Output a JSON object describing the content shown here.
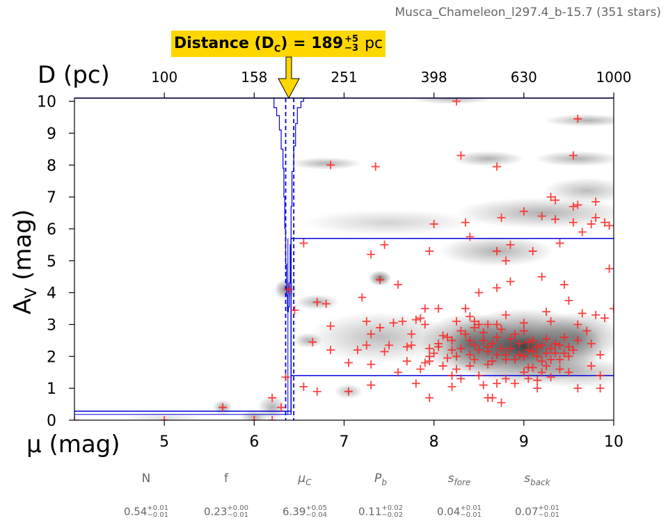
{
  "figure": {
    "source_title": "Musca_Chameleon_l297.4_b-15.7 (351 stars)",
    "distance_label_prefix": "Distance (D",
    "distance_label_sub": "C",
    "distance_label_mid": ") = 189",
    "distance_plus": "+5",
    "distance_minus": "−3",
    "distance_unit": "pc"
  },
  "chart_data": {
    "type": "scatter",
    "xlabel": "μ (mag)",
    "ylabel": "A",
    "ylabel_sub": "V",
    "ylabel_suffix": " (mag)",
    "top_xlabel": "D (pc)",
    "xlim": [
      4,
      10
    ],
    "ylim": [
      0,
      10.1
    ],
    "x_ticks": [
      "5",
      "6",
      "7",
      "8",
      "9",
      "10"
    ],
    "x_tick_values": [
      5,
      6,
      7,
      8,
      9,
      10
    ],
    "y_ticks": [
      "0",
      "1",
      "2",
      "3",
      "4",
      "5",
      "6",
      "7",
      "8",
      "9",
      "10"
    ],
    "top_ticks": [
      "100",
      "158",
      "251",
      "398",
      "630",
      "1000"
    ],
    "top_tick_values": [
      5,
      6,
      7,
      8,
      9,
      10
    ],
    "mu_cloud": 6.39,
    "mu_lo": 6.35,
    "mu_hi": 6.44,
    "foreground_av": 0.23,
    "foreground_band": [
      0.18,
      0.28
    ],
    "background_band": [
      1.4,
      5.7
    ],
    "colors": {
      "stars": "#FF2020",
      "model": "#0000DD",
      "highlight": "#FFD700",
      "density": "#202020"
    },
    "density_blobs": [
      {
        "x": 9.0,
        "y": 2.3,
        "sx": 0.55,
        "sy": 0.75,
        "a": 0.85
      },
      {
        "x": 8.4,
        "y": 2.4,
        "sx": 0.35,
        "sy": 0.6,
        "a": 0.55
      },
      {
        "x": 9.6,
        "y": 2.6,
        "sx": 0.3,
        "sy": 0.5,
        "a": 0.45
      },
      {
        "x": 7.4,
        "y": 2.6,
        "sx": 0.5,
        "sy": 0.5,
        "a": 0.3
      },
      {
        "x": 8.6,
        "y": 8.2,
        "sx": 0.25,
        "sy": 0.15,
        "a": 0.35
      },
      {
        "x": 9.6,
        "y": 8.2,
        "sx": 0.3,
        "sy": 0.15,
        "a": 0.35
      },
      {
        "x": 9.7,
        "y": 9.4,
        "sx": 0.3,
        "sy": 0.12,
        "a": 0.35
      },
      {
        "x": 8.2,
        "y": 10.1,
        "sx": 0.3,
        "sy": 0.12,
        "a": 0.35
      },
      {
        "x": 7.5,
        "y": 6.2,
        "sx": 0.6,
        "sy": 0.25,
        "a": 0.2
      },
      {
        "x": 9.2,
        "y": 6.5,
        "sx": 0.6,
        "sy": 0.3,
        "a": 0.35
      },
      {
        "x": 9.7,
        "y": 7.2,
        "sx": 0.3,
        "sy": 0.25,
        "a": 0.3
      },
      {
        "x": 8.7,
        "y": 5.3,
        "sx": 0.4,
        "sy": 0.3,
        "a": 0.35
      },
      {
        "x": 6.8,
        "y": 8.05,
        "sx": 0.25,
        "sy": 0.12,
        "a": 0.35
      },
      {
        "x": 7.4,
        "y": 4.45,
        "sx": 0.08,
        "sy": 0.15,
        "a": 0.6
      },
      {
        "x": 6.35,
        "y": 4.1,
        "sx": 0.08,
        "sy": 0.2,
        "a": 0.55
      },
      {
        "x": 6.7,
        "y": 3.7,
        "sx": 0.15,
        "sy": 0.15,
        "a": 0.35
      },
      {
        "x": 5.65,
        "y": 0.4,
        "sx": 0.07,
        "sy": 0.15,
        "a": 0.4
      },
      {
        "x": 6.0,
        "y": 0.1,
        "sx": 0.1,
        "sy": 0.15,
        "a": 0.35
      },
      {
        "x": 6.2,
        "y": 0.4,
        "sx": 0.1,
        "sy": 0.25,
        "a": 0.35
      },
      {
        "x": 5.0,
        "y": 0.05,
        "sx": 0.3,
        "sy": 0.12,
        "a": 0.15
      },
      {
        "x": 6.6,
        "y": 2.5,
        "sx": 0.1,
        "sy": 0.15,
        "a": 0.35
      },
      {
        "x": 7.05,
        "y": 0.9,
        "sx": 0.1,
        "sy": 0.15,
        "a": 0.3
      },
      {
        "x": 9.6,
        "y": 1.5,
        "sx": 0.4,
        "sy": 0.3,
        "a": 0.3
      }
    ],
    "stars": [
      [
        4.0,
        0.0
      ],
      [
        5.0,
        0.0
      ],
      [
        6.0,
        0.0
      ],
      [
        6.2,
        0.0
      ],
      [
        5.65,
        0.4
      ],
      [
        6.2,
        0.7
      ],
      [
        6.3,
        0.4
      ],
      [
        6.35,
        1.35
      ],
      [
        6.38,
        4.1
      ],
      [
        6.45,
        3.45
      ],
      [
        6.55,
        5.55
      ],
      [
        6.55,
        1.05
      ],
      [
        6.65,
        2.45
      ],
      [
        6.7,
        0.9
      ],
      [
        6.7,
        3.7
      ],
      [
        6.8,
        3.65
      ],
      [
        6.85,
        2.95
      ],
      [
        6.85,
        2.2
      ],
      [
        6.85,
        8.0
      ],
      [
        7.05,
        0.9
      ],
      [
        7.05,
        1.8
      ],
      [
        7.15,
        2.2
      ],
      [
        7.2,
        3.85
      ],
      [
        7.25,
        2.35
      ],
      [
        7.25,
        3.1
      ],
      [
        7.3,
        2.7
      ],
      [
        7.3,
        1.75
      ],
      [
        7.3,
        1.1
      ],
      [
        7.3,
        5.2
      ],
      [
        7.35,
        7.95
      ],
      [
        7.4,
        4.4
      ],
      [
        7.4,
        2.9
      ],
      [
        7.45,
        2.15
      ],
      [
        7.45,
        5.5
      ],
      [
        7.5,
        2.35
      ],
      [
        7.55,
        3.05
      ],
      [
        7.6,
        4.25
      ],
      [
        7.6,
        1.5
      ],
      [
        7.65,
        3.1
      ],
      [
        7.7,
        2.3
      ],
      [
        7.7,
        1.85
      ],
      [
        7.75,
        2.7
      ],
      [
        7.8,
        1.15
      ],
      [
        7.8,
        3.15
      ],
      [
        7.85,
        3.2
      ],
      [
        7.85,
        1.6
      ],
      [
        7.9,
        1.8
      ],
      [
        7.9,
        3.5
      ],
      [
        7.95,
        2.25
      ],
      [
        7.95,
        0.7
      ],
      [
        7.95,
        5.3
      ],
      [
        7.95,
        2.0
      ],
      [
        7.95,
        1.85
      ],
      [
        7.9,
        3.0
      ],
      [
        8.0,
        2.1
      ],
      [
        8.0,
        6.15
      ],
      [
        8.05,
        3.5
      ],
      [
        8.05,
        2.3
      ],
      [
        8.1,
        1.7
      ],
      [
        8.15,
        2.6
      ],
      [
        8.2,
        1.4
      ],
      [
        8.2,
        1.05
      ],
      [
        8.2,
        2.2
      ],
      [
        8.25,
        3.1
      ],
      [
        8.25,
        2.0
      ],
      [
        8.25,
        10.0
      ],
      [
        8.3,
        1.3
      ],
      [
        8.3,
        2.8
      ],
      [
        8.3,
        8.3
      ],
      [
        8.35,
        6.2
      ],
      [
        8.35,
        3.5
      ],
      [
        8.4,
        2.5
      ],
      [
        8.4,
        1.7
      ],
      [
        8.4,
        3.25
      ],
      [
        8.4,
        5.75
      ],
      [
        8.45,
        2.9
      ],
      [
        8.45,
        1.9
      ],
      [
        8.5,
        3.0
      ],
      [
        8.5,
        4.0
      ],
      [
        8.5,
        1.4
      ],
      [
        8.55,
        2.5
      ],
      [
        8.6,
        1.75
      ],
      [
        8.6,
        2.15
      ],
      [
        8.6,
        0.7
      ],
      [
        8.65,
        0.7
      ],
      [
        8.65,
        2.4
      ],
      [
        8.7,
        1.15
      ],
      [
        8.7,
        2.6
      ],
      [
        8.7,
        3.0
      ],
      [
        8.7,
        4.15
      ],
      [
        8.7,
        5.3
      ],
      [
        8.7,
        7.95
      ],
      [
        8.75,
        6.35
      ],
      [
        8.75,
        2.25
      ],
      [
        8.75,
        0.55
      ],
      [
        8.8,
        5.0
      ],
      [
        8.8,
        3.3
      ],
      [
        8.8,
        1.3
      ],
      [
        8.85,
        4.35
      ],
      [
        8.85,
        5.5
      ],
      [
        8.85,
        2.55
      ],
      [
        8.9,
        1.15
      ],
      [
        8.9,
        1.9
      ],
      [
        8.95,
        2.4
      ],
      [
        9.0,
        2.8
      ],
      [
        9.0,
        6.55
      ],
      [
        9.05,
        1.65
      ],
      [
        9.05,
        2.2
      ],
      [
        9.05,
        1.3
      ],
      [
        9.1,
        2.5
      ],
      [
        9.1,
        5.3
      ],
      [
        9.15,
        2.0
      ],
      [
        9.15,
        1.0
      ],
      [
        9.2,
        2.35
      ],
      [
        9.2,
        6.4
      ],
      [
        9.2,
        4.5
      ],
      [
        9.25,
        3.4
      ],
      [
        9.25,
        2.1
      ],
      [
        9.25,
        1.7
      ],
      [
        9.3,
        3.1
      ],
      [
        9.3,
        1.35
      ],
      [
        9.3,
        7.0
      ],
      [
        9.35,
        6.3
      ],
      [
        9.35,
        6.9
      ],
      [
        9.35,
        2.4
      ],
      [
        9.4,
        1.6
      ],
      [
        9.4,
        5.55
      ],
      [
        9.45,
        4.25
      ],
      [
        9.45,
        2.1
      ],
      [
        9.5,
        3.75
      ],
      [
        9.5,
        1.5
      ],
      [
        9.55,
        6.7
      ],
      [
        9.55,
        6.2
      ],
      [
        9.55,
        8.3
      ],
      [
        9.6,
        1.0
      ],
      [
        9.6,
        6.75
      ],
      [
        9.6,
        2.5
      ],
      [
        9.6,
        9.45
      ],
      [
        9.65,
        5.9
      ],
      [
        9.65,
        3.35
      ],
      [
        9.7,
        2.8
      ],
      [
        9.75,
        1.7
      ],
      [
        9.75,
        6.15
      ],
      [
        9.75,
        2.4
      ],
      [
        9.8,
        3.3
      ],
      [
        9.8,
        6.35
      ],
      [
        9.8,
        6.85
      ],
      [
        9.85,
        1.4
      ],
      [
        9.85,
        2.05
      ],
      [
        9.85,
        1.0
      ],
      [
        9.9,
        6.2
      ],
      [
        9.9,
        3.2
      ],
      [
        9.95,
        6.1
      ],
      [
        9.95,
        4.75
      ],
      [
        10.0,
        3.5
      ],
      [
        8.05,
        2.4
      ],
      [
        8.15,
        1.95
      ],
      [
        8.35,
        2.7
      ],
      [
        8.45,
        2.35
      ],
      [
        8.55,
        2.75
      ],
      [
        8.65,
        1.85
      ],
      [
        8.75,
        2.85
      ],
      [
        8.8,
        2.05
      ],
      [
        8.85,
        2.25
      ],
      [
        8.95,
        2.05
      ],
      [
        9.0,
        2.0
      ],
      [
        9.05,
        2.45
      ],
      [
        9.1,
        2.15
      ],
      [
        9.15,
        2.3
      ],
      [
        9.2,
        1.85
      ],
      [
        9.25,
        2.55
      ],
      [
        9.3,
        2.25
      ],
      [
        9.35,
        2.1
      ],
      [
        9.4,
        2.35
      ],
      [
        9.45,
        2.6
      ],
      [
        9.5,
        2.0
      ],
      [
        9.55,
        2.2
      ],
      [
        8.9,
        2.7
      ],
      [
        9.0,
        1.5
      ],
      [
        9.1,
        1.65
      ],
      [
        9.2,
        1.5
      ],
      [
        9.3,
        1.9
      ],
      [
        9.4,
        1.9
      ],
      [
        9.5,
        2.3
      ],
      [
        8.6,
        2.3
      ],
      [
        8.5,
        2.2
      ],
      [
        8.7,
        2.05
      ],
      [
        8.3,
        2.25
      ],
      [
        8.2,
        2.5
      ],
      [
        8.1,
        2.65
      ],
      [
        8.4,
        2.05
      ],
      [
        8.45,
        3.1
      ],
      [
        8.6,
        3.0
      ],
      [
        8.8,
        1.9
      ],
      [
        9.6,
        3.0
      ],
      [
        9.0,
        3.05
      ],
      [
        8.25,
        1.6
      ],
      [
        7.75,
        2.35
      ],
      [
        8.55,
        1.1
      ],
      [
        9.15,
        1.25
      ]
    ],
    "model_curve": [
      [
        6.22,
        10.1
      ],
      [
        6.22,
        9.8
      ],
      [
        6.25,
        9.8
      ],
      [
        6.25,
        9.55
      ],
      [
        6.28,
        9.55
      ],
      [
        6.28,
        9.1
      ],
      [
        6.3,
        9.1
      ],
      [
        6.3,
        8.5
      ],
      [
        6.32,
        8.5
      ],
      [
        6.32,
        7.9
      ],
      [
        6.33,
        7.9
      ],
      [
        6.33,
        7.0
      ],
      [
        6.34,
        7.0
      ],
      [
        6.34,
        6.0
      ],
      [
        6.35,
        6.0
      ],
      [
        6.35,
        4.9
      ],
      [
        6.36,
        4.9
      ],
      [
        6.36,
        3.9
      ],
      [
        6.37,
        3.9
      ],
      [
        6.37,
        3.4
      ],
      [
        6.38,
        3.4
      ],
      [
        6.38,
        3.55
      ],
      [
        6.39,
        3.55
      ],
      [
        6.39,
        4.3
      ],
      [
        6.4,
        4.3
      ],
      [
        6.4,
        5.5
      ],
      [
        6.41,
        5.5
      ],
      [
        6.41,
        6.7
      ],
      [
        6.42,
        6.7
      ],
      [
        6.42,
        7.8
      ],
      [
        6.44,
        7.8
      ],
      [
        6.44,
        8.6
      ],
      [
        6.46,
        8.6
      ],
      [
        6.46,
        9.3
      ],
      [
        6.48,
        9.3
      ],
      [
        6.48,
        9.8
      ],
      [
        6.52,
        9.8
      ],
      [
        6.52,
        10.0
      ],
      [
        6.55,
        10.0
      ],
      [
        6.55,
        10.1
      ],
      [
        6.6,
        10.1
      ]
    ],
    "top_line": [
      4.0,
      10.0
    ]
  },
  "parameters": {
    "items": [
      {
        "name": "N",
        "plain": true,
        "value": "0.54",
        "plus": "+0.01",
        "minus": "−0.01"
      },
      {
        "name": "f",
        "plain": true,
        "value": "0.23",
        "plus": "+0.00",
        "minus": "−0.01"
      },
      {
        "name": "μC",
        "plain": false,
        "value": "6.39",
        "plus": "+0.05",
        "minus": "−0.04"
      },
      {
        "name": "Pb",
        "plain": false,
        "value": "0.11",
        "plus": "+0.02",
        "minus": "−0.02"
      },
      {
        "name": "sfore",
        "plain": false,
        "value": "0.04",
        "plus": "+0.01",
        "minus": "−0.01"
      },
      {
        "name": "sback",
        "plain": false,
        "value": "0.07",
        "plus": "+0.01",
        "minus": "−0.01"
      }
    ]
  }
}
